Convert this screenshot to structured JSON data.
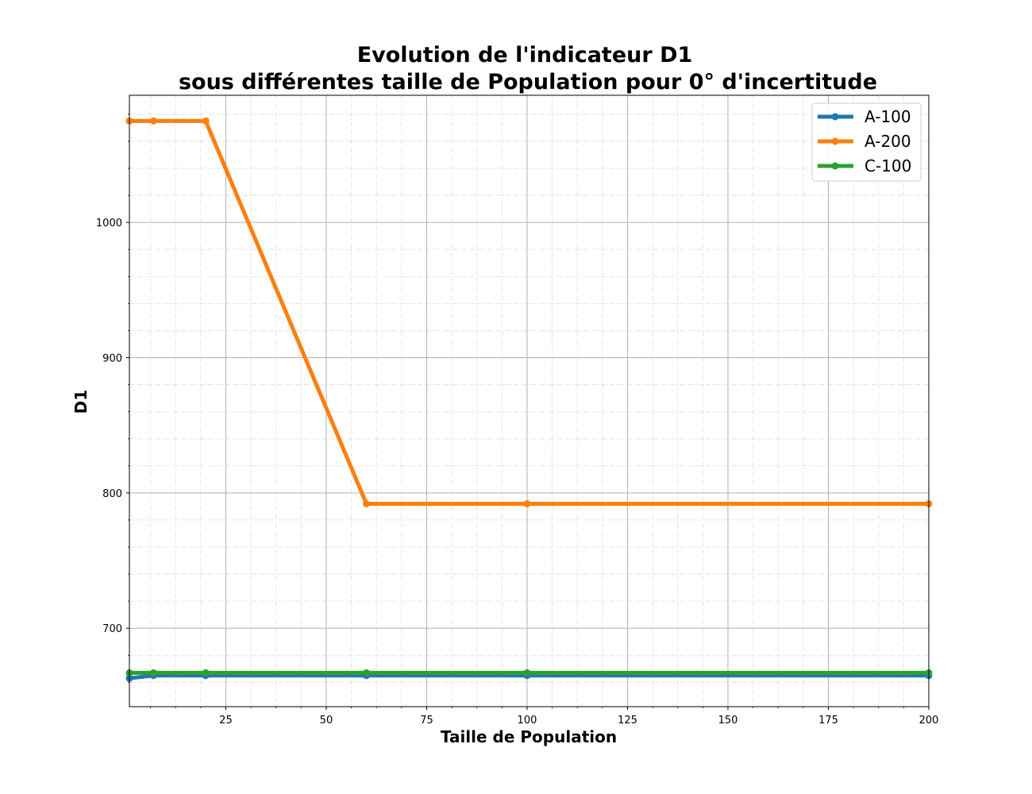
{
  "chart_data": {
    "type": "line",
    "title_line1": "Evolution de l'indicateur  D1",
    "title_line2": "sous différentes taille de Population pour 0° d'incertitude",
    "xlabel": "Taille de Population",
    "ylabel": "D1",
    "xlim": [
      1,
      200
    ],
    "ylim": [
      642,
      1094
    ],
    "xticks": [
      25,
      50,
      75,
      100,
      125,
      150,
      175,
      200
    ],
    "xtick_labels": [
      "25",
      "50",
      "75",
      "100",
      "125",
      "150",
      "175",
      "200"
    ],
    "yticks": [
      700,
      800,
      900,
      1000
    ],
    "ytick_labels": [
      "700",
      "800",
      "900",
      "1000"
    ],
    "x_minor_step": 6.25,
    "y_minor_step": 20,
    "grid": true,
    "legend_position": "upper right",
    "series": [
      {
        "name": "A-100",
        "color": "#1f77b4",
        "x": [
          1,
          7,
          20,
          60,
          100,
          200
        ],
        "values": [
          663,
          665,
          665,
          665,
          665,
          665
        ]
      },
      {
        "name": "A-200",
        "color": "#ff7f0e",
        "x": [
          1,
          7,
          20,
          60,
          100,
          200
        ],
        "values": [
          1075,
          1075,
          1075,
          792,
          792,
          792
        ]
      },
      {
        "name": "C-100",
        "color": "#2ca02c",
        "x": [
          1,
          7,
          20,
          60,
          100,
          200
        ],
        "values": [
          667,
          667,
          667,
          667,
          667,
          667
        ]
      }
    ]
  }
}
